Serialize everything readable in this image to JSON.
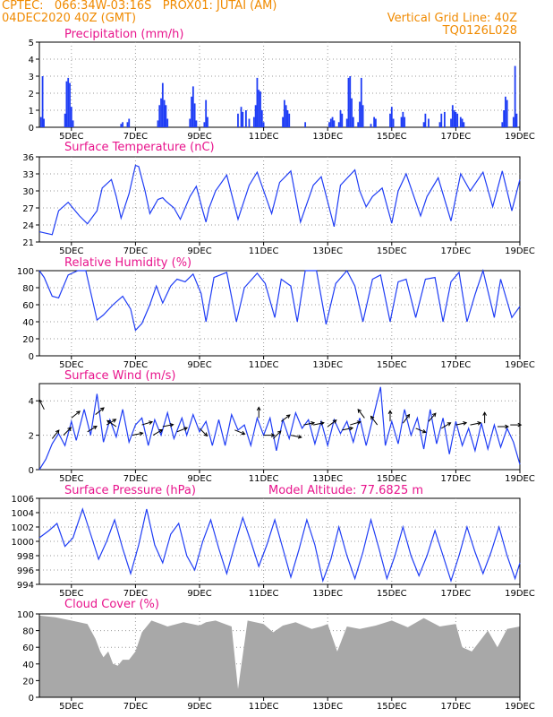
{
  "header": {
    "line1_left": "CPTEC:   066:34W-03:16S   PROX01: JUTAI (AM)",
    "line2_left": "04DEC2020 40Z (GMT)",
    "line2_right": "Vertical Grid Line: 40Z",
    "line3_right": "TQ0126L028"
  },
  "colors": {
    "header_text": "#f08a00",
    "panel_title": "#e8148c",
    "series": "#1f3df5",
    "cloud": "#a8a8a8",
    "grid": "#9a9a9a",
    "axis": "#000000"
  },
  "chart_data": [
    {
      "id": "precip",
      "type": "bar",
      "title": "Precipitation (mm/h)",
      "ylim": [
        0,
        5
      ],
      "yticks": [
        0,
        1,
        2,
        3,
        4,
        5
      ],
      "x_ticks": [
        "5DEC",
        "7DEC",
        "9DEC",
        "11DEC",
        "13DEC",
        "15DEC",
        "17DEC",
        "19DEC"
      ],
      "x_start_day": 4.0,
      "x_end_day": 19.0,
      "bars": [
        [
          4.05,
          0.6
        ],
        [
          4.1,
          3.0
        ],
        [
          4.14,
          0.5
        ],
        [
          4.8,
          0.8
        ],
        [
          4.85,
          2.7
        ],
        [
          4.9,
          2.9
        ],
        [
          4.95,
          2.6
        ],
        [
          5.0,
          1.2
        ],
        [
          5.05,
          0.4
        ],
        [
          6.55,
          0.2
        ],
        [
          6.6,
          0.3
        ],
        [
          6.75,
          0.3
        ],
        [
          6.8,
          0.5
        ],
        [
          7.7,
          0.4
        ],
        [
          7.75,
          1.3
        ],
        [
          7.8,
          1.7
        ],
        [
          7.85,
          2.6
        ],
        [
          7.9,
          1.6
        ],
        [
          7.95,
          1.3
        ],
        [
          8.0,
          0.5
        ],
        [
          8.7,
          0.5
        ],
        [
          8.75,
          1.8
        ],
        [
          8.8,
          2.4
        ],
        [
          8.85,
          1.4
        ],
        [
          8.9,
          0.4
        ],
        [
          9.15,
          0.3
        ],
        [
          9.2,
          1.6
        ],
        [
          9.25,
          0.6
        ],
        [
          10.2,
          0.8
        ],
        [
          10.3,
          1.2
        ],
        [
          10.35,
          0.9
        ],
        [
          10.45,
          1.0
        ],
        [
          10.55,
          0.5
        ],
        [
          10.7,
          0.6
        ],
        [
          10.75,
          1.3
        ],
        [
          10.8,
          2.9
        ],
        [
          10.85,
          2.2
        ],
        [
          10.9,
          2.1
        ],
        [
          10.95,
          1.0
        ],
        [
          11.0,
          0.3
        ],
        [
          11.6,
          0.6
        ],
        [
          11.65,
          1.6
        ],
        [
          11.7,
          1.3
        ],
        [
          11.75,
          1.0
        ],
        [
          11.8,
          0.8
        ],
        [
          12.3,
          0.3
        ],
        [
          13.05,
          0.3
        ],
        [
          13.1,
          0.5
        ],
        [
          13.15,
          0.6
        ],
        [
          13.2,
          0.4
        ],
        [
          13.35,
          0.3
        ],
        [
          13.4,
          1.0
        ],
        [
          13.45,
          0.8
        ],
        [
          13.6,
          0.5
        ],
        [
          13.65,
          2.9
        ],
        [
          13.7,
          3.0
        ],
        [
          13.75,
          1.7
        ],
        [
          13.8,
          0.6
        ],
        [
          13.95,
          0.3
        ],
        [
          14.0,
          1.5
        ],
        [
          14.05,
          2.9
        ],
        [
          14.1,
          1.3
        ],
        [
          14.35,
          0.2
        ],
        [
          14.45,
          0.6
        ],
        [
          14.5,
          0.5
        ],
        [
          14.95,
          0.8
        ],
        [
          15.0,
          1.2
        ],
        [
          15.05,
          0.5
        ],
        [
          15.3,
          0.6
        ],
        [
          15.35,
          0.9
        ],
        [
          15.4,
          0.6
        ],
        [
          16.0,
          0.3
        ],
        [
          16.05,
          0.8
        ],
        [
          16.15,
          0.5
        ],
        [
          16.5,
          0.3
        ],
        [
          16.55,
          0.8
        ],
        [
          16.65,
          0.9
        ],
        [
          16.85,
          0.5
        ],
        [
          16.9,
          1.3
        ],
        [
          16.95,
          1.0
        ],
        [
          17.0,
          0.9
        ],
        [
          17.05,
          0.8
        ],
        [
          17.15,
          0.6
        ],
        [
          17.2,
          0.5
        ],
        [
          17.25,
          0.3
        ],
        [
          18.45,
          0.3
        ],
        [
          18.5,
          1.0
        ],
        [
          18.55,
          1.8
        ],
        [
          18.6,
          1.6
        ],
        [
          18.8,
          0.6
        ],
        [
          18.85,
          3.6
        ],
        [
          18.9,
          0.8
        ]
      ]
    },
    {
      "id": "temp",
      "type": "line",
      "title": "Surface Temperature (nC)",
      "ylim": [
        21,
        36
      ],
      "yticks": [
        21,
        24,
        27,
        30,
        33,
        36
      ],
      "x_ticks": [
        "5DEC",
        "7DEC",
        "9DEC",
        "11DEC",
        "13DEC",
        "15DEC",
        "17DEC",
        "19DEC"
      ],
      "x_start_day": 4.0,
      "x_end_day": 19.0,
      "x": [
        4.0,
        4.4,
        4.6,
        4.9,
        5.25,
        5.5,
        5.8,
        5.96,
        6.25,
        6.4,
        6.55,
        6.8,
        7.0,
        7.1,
        7.3,
        7.45,
        7.7,
        7.85,
        7.95,
        8.2,
        8.4,
        8.7,
        8.9,
        9.1,
        9.2,
        9.3,
        9.5,
        9.85,
        10.2,
        10.55,
        10.8,
        11.25,
        11.5,
        11.85,
        12.15,
        12.55,
        12.8,
        13.2,
        13.4,
        13.85,
        14.0,
        14.2,
        14.4,
        14.7,
        15.0,
        15.2,
        15.45,
        15.9,
        16.1,
        16.45,
        16.85,
        17.15,
        17.45,
        17.85,
        18.15,
        18.45,
        18.75,
        19.0
      ],
      "y": [
        22.8,
        22.3,
        26.5,
        28.0,
        25.6,
        24.2,
        26.5,
        30.5,
        32.0,
        29.0,
        25.2,
        29.5,
        34.5,
        34.3,
        30.0,
        26.0,
        28.5,
        28.8,
        28.2,
        27.0,
        25.0,
        29.0,
        30.8,
        26.5,
        24.5,
        27.0,
        30.0,
        32.8,
        25.0,
        31.0,
        33.3,
        26.0,
        31.5,
        33.5,
        24.5,
        31.0,
        32.5,
        23.7,
        31.0,
        33.7,
        30.0,
        27.2,
        29.0,
        30.5,
        24.3,
        30.0,
        33.0,
        25.6,
        29.0,
        32.3,
        24.7,
        33.0,
        30.0,
        33.3,
        27.2,
        33.5,
        26.5,
        32.0
      ]
    },
    {
      "id": "rh",
      "type": "line",
      "title": "Relative Humidity (%)",
      "ylim": [
        0,
        100
      ],
      "yticks": [
        0,
        20,
        40,
        60,
        80,
        100
      ],
      "x_ticks": [
        "5DEC",
        "7DEC",
        "9DEC",
        "11DEC",
        "13DEC",
        "15DEC",
        "17DEC",
        "19DEC"
      ],
      "x_start_day": 4.0,
      "x_end_day": 19.0,
      "x": [
        4.0,
        4.15,
        4.4,
        4.6,
        4.9,
        5.2,
        5.45,
        5.8,
        6.0,
        6.3,
        6.6,
        6.85,
        7.0,
        7.2,
        7.45,
        7.65,
        7.85,
        8.1,
        8.3,
        8.55,
        8.8,
        9.05,
        9.2,
        9.45,
        9.85,
        10.15,
        10.4,
        10.8,
        11.05,
        11.35,
        11.55,
        11.85,
        12.05,
        12.3,
        12.65,
        12.95,
        13.25,
        13.6,
        13.85,
        14.1,
        14.4,
        14.65,
        14.95,
        15.2,
        15.45,
        15.75,
        16.05,
        16.35,
        16.6,
        16.85,
        17.1,
        17.35,
        17.6,
        17.85,
        18.2,
        18.4,
        18.75,
        19.0
      ],
      "y": [
        100,
        92,
        70,
        68,
        95,
        100,
        100,
        42,
        48,
        60,
        70,
        55,
        30,
        38,
        60,
        82,
        62,
        82,
        90,
        87,
        96,
        73,
        40,
        92,
        98,
        40,
        80,
        97,
        85,
        45,
        90,
        82,
        40,
        100,
        100,
        37,
        85,
        100,
        82,
        40,
        90,
        95,
        40,
        87,
        90,
        45,
        90,
        92,
        40,
        87,
        98,
        40,
        72,
        100,
        45,
        90,
        45,
        58
      ]
    },
    {
      "id": "wind",
      "type": "line",
      "title": "Surface Wind (m/s)",
      "ylim": [
        0,
        5
      ],
      "yticks": [
        0,
        2,
        4
      ],
      "x_ticks": [
        "5DEC",
        "7DEC",
        "9DEC",
        "11DEC",
        "13DEC",
        "15DEC",
        "17DEC",
        "19DEC"
      ],
      "x_start_day": 4.0,
      "x_end_day": 19.0,
      "x": [
        4.0,
        4.2,
        4.4,
        4.6,
        4.8,
        5.0,
        5.15,
        5.4,
        5.6,
        5.8,
        6.0,
        6.2,
        6.4,
        6.6,
        6.8,
        7.0,
        7.2,
        7.4,
        7.6,
        7.8,
        8.0,
        8.2,
        8.45,
        8.6,
        8.8,
        9.0,
        9.2,
        9.4,
        9.6,
        9.8,
        10.0,
        10.2,
        10.4,
        10.6,
        10.8,
        11.0,
        11.2,
        11.4,
        11.6,
        11.8,
        12.0,
        12.2,
        12.4,
        12.6,
        12.8,
        13.0,
        13.2,
        13.4,
        13.6,
        13.8,
        14.0,
        14.2,
        14.4,
        14.65,
        14.8,
        15.0,
        15.2,
        15.4,
        15.6,
        15.8,
        16.0,
        16.2,
        16.4,
        16.6,
        16.8,
        17.0,
        17.2,
        17.4,
        17.6,
        17.8,
        18.0,
        18.2,
        18.4,
        18.6,
        18.8,
        19.0
      ],
      "y": [
        0.0,
        0.6,
        1.5,
        2.1,
        1.4,
        2.8,
        1.7,
        3.5,
        2.0,
        4.4,
        1.6,
        2.9,
        1.9,
        3.5,
        1.6,
        2.6,
        3.0,
        1.4,
        2.9,
        2.0,
        3.3,
        1.8,
        3.0,
        2.0,
        3.2,
        2.2,
        2.8,
        1.4,
        2.9,
        1.4,
        3.2,
        2.3,
        2.6,
        1.4,
        3.0,
        2.0,
        3.0,
        1.1,
        2.9,
        1.8,
        3.3,
        2.4,
        2.9,
        1.5,
        2.8,
        1.4,
        2.9,
        2.1,
        2.8,
        1.6,
        3.0,
        1.4,
        2.9,
        4.8,
        1.4,
        2.8,
        1.5,
        3.5,
        2.0,
        3.0,
        1.2,
        3.5,
        1.5,
        3.0,
        0.9,
        2.8,
        1.4,
        2.4,
        1.1,
        2.7,
        1.2,
        2.6,
        1.3,
        2.4,
        1.6,
        0.3
      ]
    },
    {
      "id": "pressure",
      "type": "line",
      "title": "Surface Pressure (hPa)",
      "subtitle": "Model Altitude: 77.6825 m",
      "ylim": [
        994,
        1006
      ],
      "yticks": [
        994,
        996,
        998,
        1000,
        1002,
        1004,
        1006
      ],
      "x_ticks": [
        "5DEC",
        "7DEC",
        "9DEC",
        "11DEC",
        "13DEC",
        "15DEC",
        "17DEC",
        "19DEC"
      ],
      "x_start_day": 4.0,
      "x_end_day": 19.0,
      "x": [
        4.0,
        4.3,
        4.55,
        4.8,
        5.05,
        5.35,
        5.6,
        5.85,
        6.1,
        6.35,
        6.6,
        6.85,
        7.1,
        7.35,
        7.6,
        7.85,
        8.1,
        8.35,
        8.6,
        8.85,
        9.1,
        9.35,
        9.6,
        9.85,
        10.1,
        10.35,
        10.6,
        10.85,
        11.1,
        11.35,
        11.6,
        11.85,
        12.1,
        12.35,
        12.6,
        12.85,
        13.1,
        13.35,
        13.6,
        13.85,
        14.1,
        14.35,
        14.6,
        14.85,
        15.1,
        15.35,
        15.6,
        15.85,
        16.1,
        16.35,
        16.6,
        16.85,
        17.1,
        17.35,
        17.6,
        17.85,
        18.1,
        18.35,
        18.6,
        18.85,
        19.0
      ],
      "y": [
        1000.5,
        1001.5,
        1002.5,
        999.3,
        1000.5,
        1004.5,
        1001.0,
        997.5,
        1000.0,
        1003.0,
        999.0,
        995.5,
        999.5,
        1004.5,
        999.5,
        997.0,
        1001.0,
        1002.5,
        998.0,
        996.0,
        1000.0,
        1003.0,
        999.0,
        995.5,
        999.5,
        1003.3,
        1000.0,
        996.5,
        999.5,
        1003.0,
        999.0,
        995.0,
        998.8,
        1003.0,
        999.5,
        994.5,
        997.5,
        1002.0,
        998.0,
        994.8,
        998.5,
        1003.0,
        999.0,
        994.8,
        998.0,
        1002.0,
        998.0,
        995.2,
        998.0,
        1001.5,
        998.0,
        994.5,
        998.0,
        1002.0,
        998.5,
        995.5,
        998.5,
        1002.0,
        998.0,
        994.8,
        997.0
      ]
    },
    {
      "id": "cloud",
      "type": "area",
      "title": "Cloud Cover (%)",
      "ylim": [
        0,
        100
      ],
      "yticks": [
        0,
        20,
        40,
        60,
        80,
        100
      ],
      "x_ticks": [
        "5DEC",
        "7DEC",
        "9DEC",
        "11DEC",
        "13DEC",
        "15DEC",
        "17DEC",
        "19DEC"
      ],
      "x_start_day": 4.0,
      "x_end_day": 19.0,
      "x": [
        4.0,
        4.5,
        5.0,
        5.5,
        5.75,
        5.9,
        6.0,
        6.15,
        6.3,
        6.45,
        6.6,
        6.8,
        7.0,
        7.2,
        7.5,
        7.8,
        8.0,
        8.5,
        9.0,
        9.2,
        9.5,
        10.0,
        10.2,
        10.5,
        11.0,
        11.3,
        11.6,
        12.0,
        12.5,
        12.8,
        13.0,
        13.3,
        13.6,
        14.0,
        14.5,
        15.0,
        15.5,
        16.0,
        16.5,
        17.0,
        17.2,
        17.5,
        18.0,
        18.3,
        18.6,
        19.0
      ],
      "y": [
        98,
        96,
        92,
        88,
        70,
        55,
        48,
        55,
        40,
        38,
        45,
        45,
        55,
        78,
        92,
        88,
        85,
        90,
        86,
        90,
        92,
        85,
        10,
        92,
        88,
        78,
        86,
        90,
        82,
        85,
        88,
        55,
        85,
        82,
        86,
        92,
        84,
        95,
        85,
        88,
        60,
        55,
        80,
        60,
        82,
        85
      ]
    }
  ]
}
